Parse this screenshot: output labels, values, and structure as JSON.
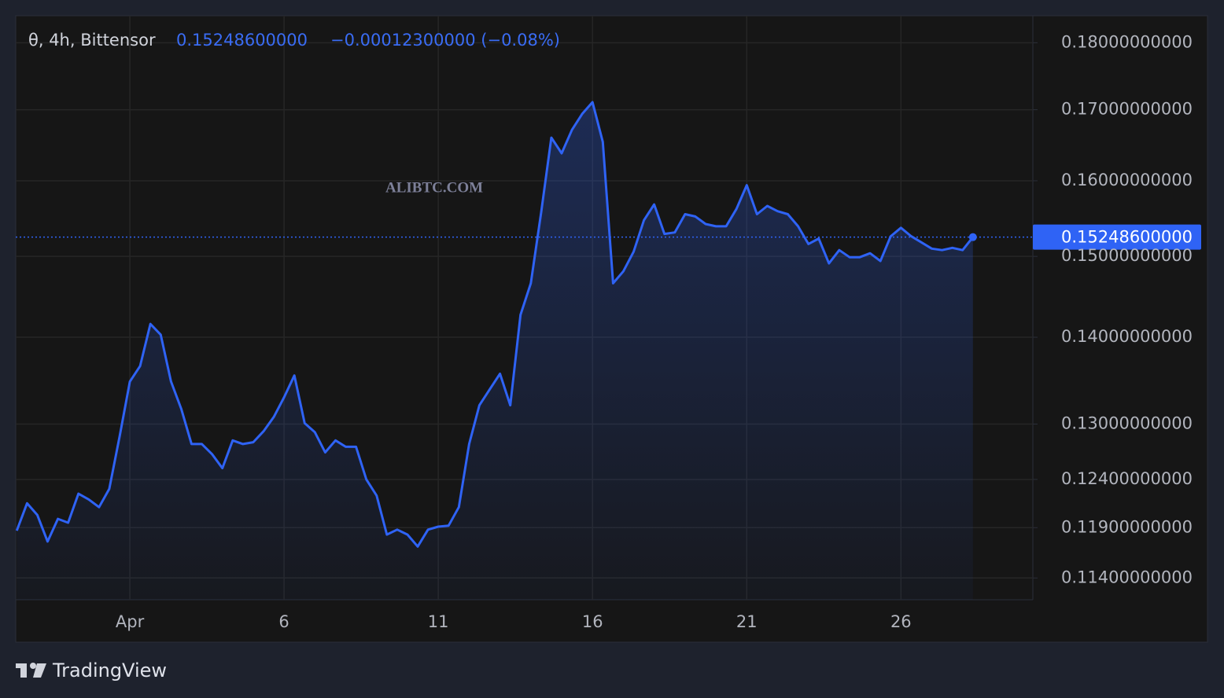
{
  "chart_data": {
    "type": "area",
    "title": "θ, 4h, Bittensor",
    "last_price_label": "0.15248600000",
    "change_label": "−0.00012300000 (−0.08%)",
    "watermark": "ALIBTC.COM",
    "brand": "TradingView",
    "color": "#2f63f5",
    "log_scale": true,
    "grid": true,
    "categories": [
      null,
      null,
      null,
      null,
      null,
      null,
      null,
      null,
      null,
      null,
      null,
      "Apr",
      null,
      null,
      null,
      null,
      null,
      null,
      null,
      null,
      null,
      null,
      null,
      null,
      null,
      null,
      "6",
      null,
      null,
      null,
      null,
      null,
      null,
      null,
      null,
      null,
      null,
      null,
      null,
      null,
      null,
      "11",
      null,
      null,
      null,
      null,
      null,
      null,
      null,
      null,
      null,
      null,
      null,
      null,
      null,
      null,
      "16",
      null,
      null,
      null,
      null,
      null,
      null,
      null,
      null,
      null,
      null,
      null,
      null,
      null,
      null,
      "21",
      null,
      null,
      null,
      null,
      null,
      null,
      null,
      null,
      null,
      null,
      null,
      null,
      null,
      null,
      "26",
      null,
      null,
      null,
      null,
      null,
      null,
      null
    ],
    "values": [
      0.1187,
      0.1215,
      0.1203,
      0.1176,
      0.1199,
      0.1195,
      0.1225,
      0.1219,
      0.1211,
      0.123,
      0.1286,
      0.1348,
      0.1366,
      0.1416,
      0.1403,
      0.1348,
      0.1317,
      0.1278,
      0.1278,
      0.1267,
      0.1252,
      0.1282,
      0.1278,
      0.128,
      0.1292,
      0.1308,
      0.133,
      0.1355,
      0.1301,
      0.1291,
      0.1269,
      0.1282,
      0.1275,
      0.1275,
      0.124,
      0.1223,
      0.1183,
      0.1188,
      0.1183,
      0.1171,
      0.1188,
      0.1191,
      0.1192,
      0.1211,
      0.1278,
      0.1321,
      0.1339,
      0.1357,
      0.1321,
      0.1427,
      0.1466,
      0.1557,
      0.166,
      0.1638,
      0.1671,
      0.1694,
      0.1711,
      0.1654,
      0.1466,
      0.1481,
      0.1506,
      0.1547,
      0.1568,
      0.1529,
      0.1531,
      0.1555,
      0.1552,
      0.1542,
      0.1539,
      0.1539,
      0.1562,
      0.1594,
      0.1555,
      0.1566,
      0.1559,
      0.1555,
      0.1539,
      0.1516,
      0.1523,
      0.1491,
      0.1508,
      0.1499,
      0.1499,
      0.1504,
      0.1494,
      0.1526,
      0.1537,
      0.1526,
      0.1518,
      0.151,
      0.1508,
      0.1511,
      0.1508,
      0.152486
    ],
    "ylim": [
      0.1119,
      0.1842
    ],
    "yticks": [
      {
        "value": 0.114,
        "label": "0.11400000000"
      },
      {
        "value": 0.119,
        "label": "0.11900000000"
      },
      {
        "value": 0.124,
        "label": "0.12400000000"
      },
      {
        "value": 0.13,
        "label": "0.13000000000"
      },
      {
        "value": 0.14,
        "label": "0.14000000000"
      },
      {
        "value": 0.15,
        "label": "0.15000000000"
      },
      {
        "value": 0.16,
        "label": "0.16000000000"
      },
      {
        "value": 0.17,
        "label": "0.17000000000"
      },
      {
        "value": 0.18,
        "label": "0.18000000000"
      }
    ]
  }
}
